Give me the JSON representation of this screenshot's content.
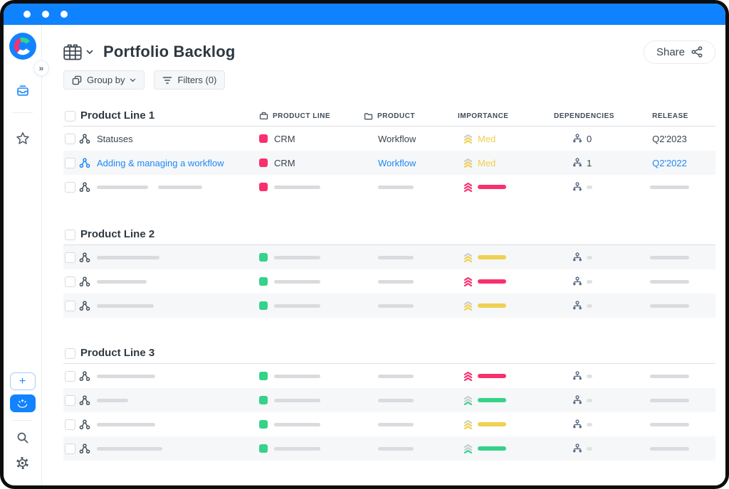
{
  "header": {
    "title": "Portfolio Backlog",
    "share_label": "Share"
  },
  "toolbar": {
    "group_by_label": "Group by",
    "filters_label": "Filters (0)"
  },
  "sidebar": {
    "add_label": "+",
    "expand_label": "»"
  },
  "colors": {
    "topbar_blue": "#0F82FF",
    "link_blue": "#1E88F8",
    "pink": "#F8306E",
    "green": "#35D28A",
    "yellow": "#EFD052",
    "chevron_gray": "#C9CDD1",
    "skeleton_gray": "#D9DBDE"
  },
  "importance_colors": {
    "high": "pink",
    "med": "yellow",
    "low": "green"
  },
  "table": {
    "columns": [
      {
        "label": "PRODUCT LINE",
        "icon": "product-line"
      },
      {
        "label": "PRODUCT",
        "icon": "product"
      },
      {
        "label": "IMPORTANCE"
      },
      {
        "label": "DEPENDENCIES"
      },
      {
        "label": "RELEASE"
      }
    ],
    "groups": [
      {
        "title": "Product Line 1",
        "rows": [
          {
            "name": "Statuses",
            "product_line": {
              "color": "pink",
              "label": "CRM"
            },
            "product": "Workflow",
            "importance": {
              "level": "med",
              "label": "Med"
            },
            "dependencies": "0",
            "release": "Q2'2023",
            "active": false
          },
          {
            "name": "Adding & managing a workflow",
            "product_line": {
              "color": "pink",
              "label": "CRM"
            },
            "product": "Workflow",
            "importance": {
              "level": "med",
              "label": "Med"
            },
            "dependencies": "1",
            "release": "Q2'2022",
            "active": true
          },
          {
            "skeleton": true,
            "name_bars": [
              72,
              62
            ],
            "product_line": {
              "color": "pink"
            },
            "importance": {
              "level": "high"
            }
          }
        ]
      },
      {
        "title": "Product Line 2",
        "rows": [
          {
            "skeleton": true,
            "name_bars": [
              88
            ],
            "product_line": {
              "color": "green"
            },
            "importance": {
              "level": "med"
            }
          },
          {
            "skeleton": true,
            "name_bars": [
              70
            ],
            "product_line": {
              "color": "green"
            },
            "importance": {
              "level": "high"
            }
          },
          {
            "skeleton": true,
            "name_bars": [
              80
            ],
            "product_line": {
              "color": "green"
            },
            "importance": {
              "level": "med"
            }
          }
        ]
      },
      {
        "title": "Product Line 3",
        "rows": [
          {
            "skeleton": true,
            "name_bars": [
              82
            ],
            "product_line": {
              "color": "green"
            },
            "importance": {
              "level": "high"
            }
          },
          {
            "skeleton": true,
            "name_bars": [
              44
            ],
            "product_line": {
              "color": "green"
            },
            "importance": {
              "level": "low"
            }
          },
          {
            "skeleton": true,
            "name_bars": [
              82
            ],
            "product_line": {
              "color": "green"
            },
            "importance": {
              "level": "med"
            }
          },
          {
            "skeleton": true,
            "name_bars": [
              92
            ],
            "product_line": {
              "color": "green"
            },
            "importance": {
              "level": "low"
            }
          }
        ]
      }
    ]
  }
}
